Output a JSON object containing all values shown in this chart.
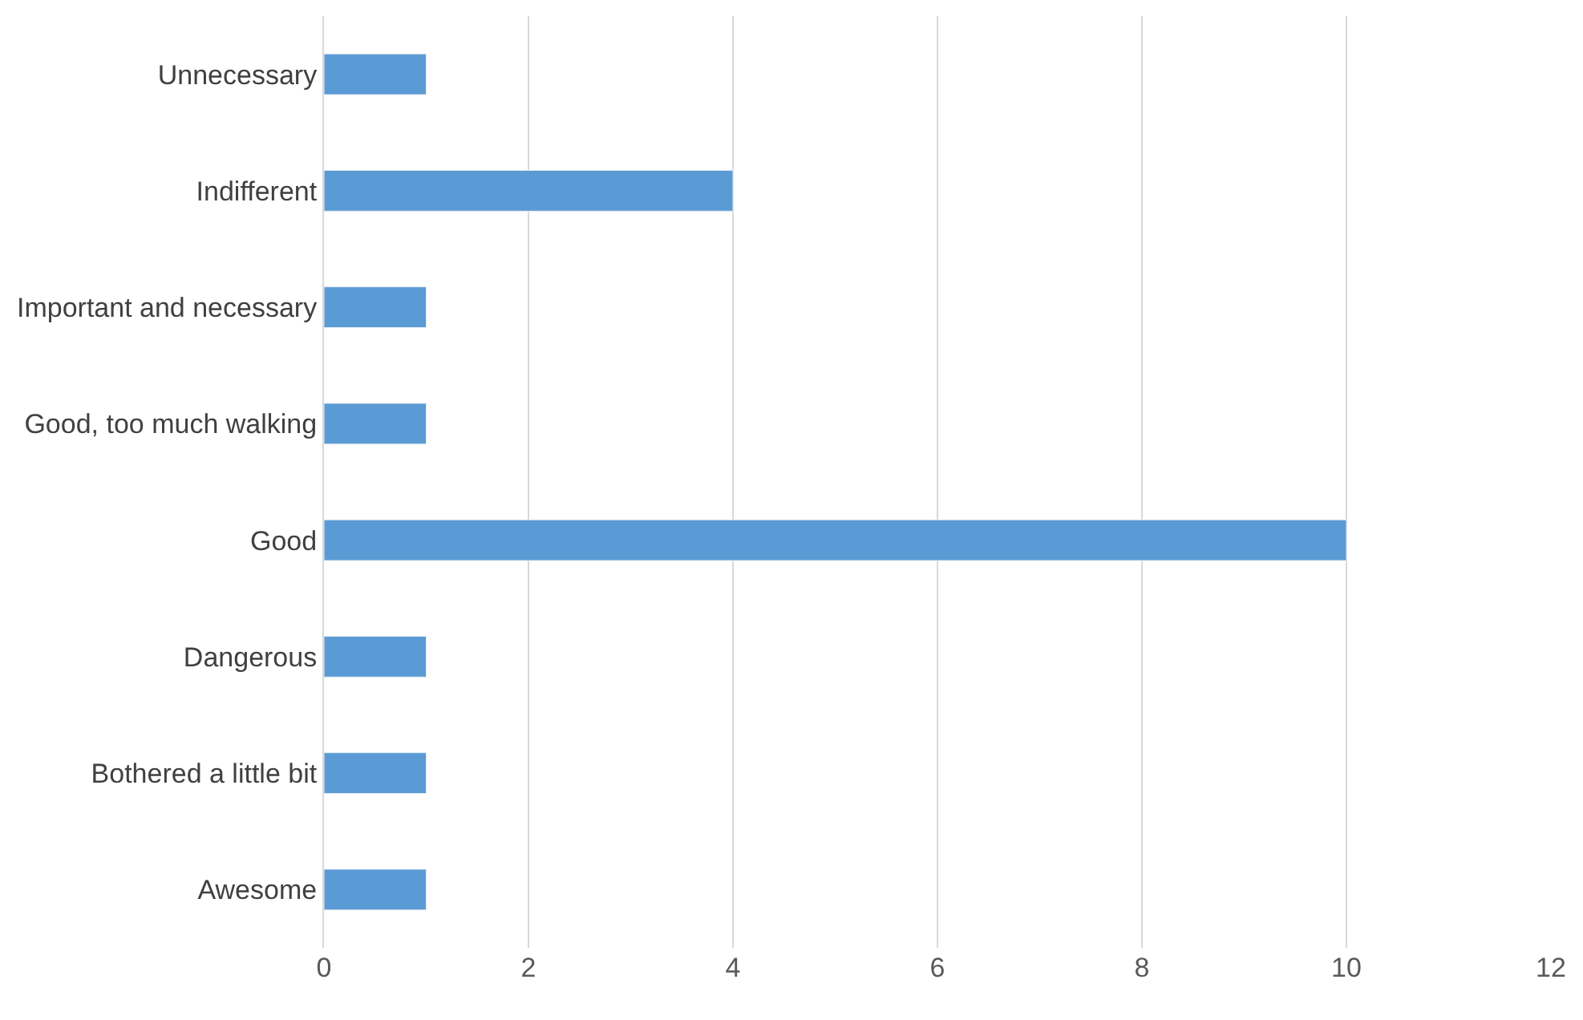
{
  "chart_data": {
    "type": "bar",
    "orientation": "horizontal",
    "categories": [
      "Unnecessary",
      "Indifferent",
      "Important and necessary",
      "Good, too much walking",
      "Good",
      "Dangerous",
      "Bothered a little bit",
      "Awesome"
    ],
    "values": [
      1,
      4,
      1,
      1,
      10,
      1,
      1,
      1
    ],
    "color": "#5b9bd5",
    "xlim": [
      0,
      12
    ],
    "xticks": [
      0,
      2,
      4,
      6,
      8,
      10,
      12
    ],
    "grid": "x",
    "legend": false
  }
}
